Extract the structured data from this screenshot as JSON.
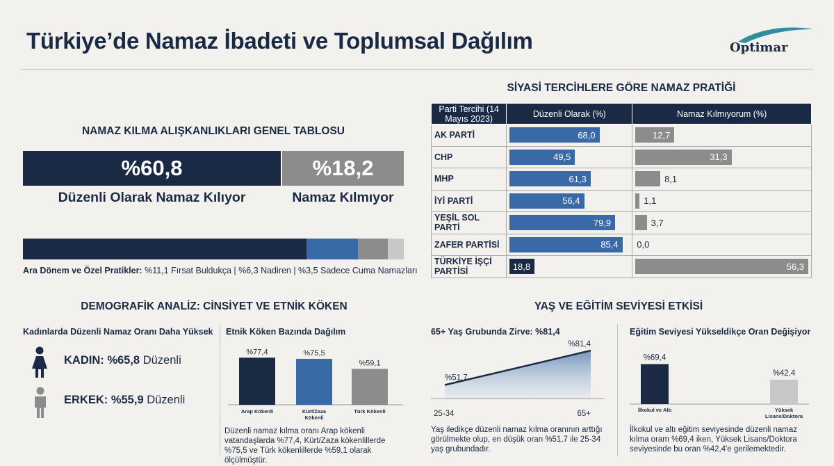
{
  "header": {
    "title": "Türkiye’de Namaz İbadeti ve Toplumsal Dağılım",
    "logo_text": "Optimar"
  },
  "colors": {
    "navy": "#1b2a44",
    "blue": "#3a69a8",
    "gray": "#8c8c8c",
    "lightgray": "#c8c8c8",
    "background": "#f2f1ed"
  },
  "overview": {
    "heading": "NAMAZ KILMA ALIŞKANLIKLARI GENEL TABLOSU",
    "regular_value": "%60,8",
    "regular_label": "Düzenli Olarak Namaz Kılıyor",
    "none_value": "%18,2",
    "none_label": "Namaz Kılmıyor",
    "caption_bold": "Ara Dönem ve Özel Pratikler:",
    "caption_rest": " %11,1 Fırsat Buldukça | %6,3 Nadiren | %3,5 Sadece Cuma Namazları"
  },
  "party": {
    "heading": "SİYASİ TERCİHLERE GÖRE NAMAZ PRATİĞİ",
    "col1": "Parti Tercihi (14 Mayıs 2023)",
    "col2": "Düzenli Olarak (%)",
    "col3": "Namaz Kılmıyorum (%)"
  },
  "demographics": {
    "heading": "DEMOGRAFİK ANALİZ: CİNSİYET VE ETNİK KÖKEN",
    "gender_sub": "Kadınlarda Düzenli Namaz Oranı Daha Yüksek",
    "female_label": "KADIN: %65,8",
    "female_suffix": " Düzenli",
    "male_label": "ERKEK: %55,9",
    "male_suffix": " Düzenli",
    "ethnic_sub": "Etnik Köken Bazında Dağılım",
    "ethnic_note": "Düzenli namaz kılma oranı Arap kökenli vatandaşlarda %77,4, Kürt/Zaza kökenlillerde %75,5 ve Türk kökenlillerde %59,1 olarak ölçülmüştür."
  },
  "age_edu": {
    "heading": "YAŞ VE EĞİTİM SEVİYESİ ETKİSİ",
    "age_sub": "65+ Yaş Grubunda Zirve: %81,4",
    "age_note": "Yaş iledikçe düzenli namaz kılma oranının arttığı görülmekte olup, en düşük oran %51,7 ile 25-34 yaş grubundadır.",
    "edu_sub": "Eğitim Seviyesi Yükseldikçe Oran Değişiyor",
    "edu_note": "İlkokul ve altı eğitim seviyesinde düzenli namaz kılma oram %69,4 iken, Yüksek Lisans/Doktora seviyesinde bu oran %42,4'e gerilemektedir."
  },
  "chart_data": [
    {
      "type": "bar",
      "categories": [
        "Düzenli Olarak Namaz Kılıyor",
        "Fırsat Buldukça",
        "Nadiren",
        "Sadece Cuma Namazları"
      ],
      "values": [
        60.8,
        11.1,
        6.3,
        3.5
      ],
      "title": "NAMAZ KILMA ALIŞKANLIKLARI GENEL TABLOSU"
    },
    {
      "type": "table",
      "title": "SİYASİ TERCİHLERE GÖRE NAMAZ PRATİĞİ",
      "columns": [
        "Parti Tercihi (14 Mayıs 2023)",
        "Düzenli Olarak (%)",
        "Namaz Kılmıyorum (%)"
      ],
      "rows": [
        {
          "party": "AK PARTİ",
          "regular": 68.0,
          "regular_label": "68,0",
          "none": 12.7,
          "none_label": "12,7"
        },
        {
          "party": "CHP",
          "regular": 49.5,
          "regular_label": "49,5",
          "none": 31.3,
          "none_label": "31,3"
        },
        {
          "party": "MHP",
          "regular": 61.3,
          "regular_label": "61,3",
          "none": 8.1,
          "none_label": "8,1"
        },
        {
          "party": "İYİ PARTİ",
          "regular": 56.4,
          "regular_label": "56,4",
          "none": 1.1,
          "none_label": "1,1"
        },
        {
          "party": "YEŞİL SOL PARTİ",
          "regular": 79.9,
          "regular_label": "79,9",
          "none": 3.7,
          "none_label": "3,7"
        },
        {
          "party": "ZAFER PARTİSİ",
          "regular": 85.4,
          "regular_label": "85,4",
          "none": 0.0,
          "none_label": "0,0"
        },
        {
          "party": "TÜRKİYE İŞÇİ PARTİSİ",
          "regular": 18.8,
          "regular_label": "18,8",
          "none": 56.3,
          "none_label": "56,3"
        }
      ]
    },
    {
      "type": "bar",
      "title": "Etnik Köken Bazında Dağılım",
      "categories": [
        "Arap Kökenli",
        "Kürt/Zaza Kökenli",
        "Türk Kökenli"
      ],
      "values": [
        77.4,
        75.5,
        59.1
      ],
      "value_labels": [
        "%77,4",
        "%75,5",
        "%59,1"
      ]
    },
    {
      "type": "area",
      "title": "65+ Yaş Grubunda Zirve: %81,4",
      "x": [
        "25-34",
        "65+"
      ],
      "values": [
        51.7,
        81.4
      ],
      "value_labels": [
        "%51,7",
        "%81,4"
      ]
    },
    {
      "type": "bar",
      "title": "Eğitim Seviyesi Yükseldikçe Oran Değişiyor",
      "categories": [
        "İlkokul ve Altı",
        "Yüksek Lisans/Doktora"
      ],
      "values": [
        69.4,
        42.4
      ],
      "value_labels": [
        "%69,4",
        "%42,4"
      ]
    }
  ]
}
